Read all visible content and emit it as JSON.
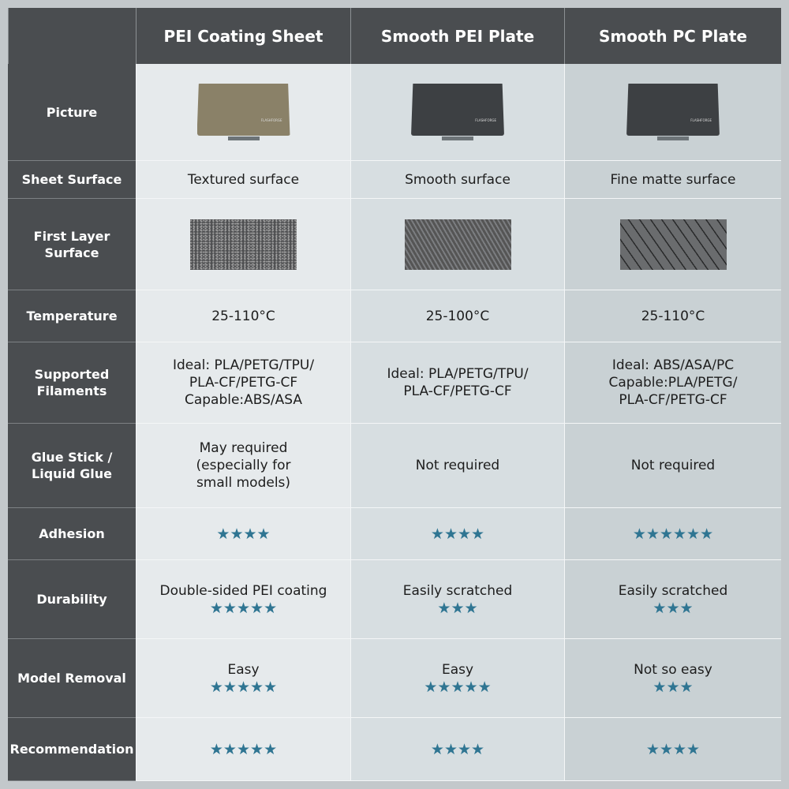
{
  "columns": [
    "PEI Coating Sheet",
    "Smooth PEI Plate",
    "Smooth PC Plate"
  ],
  "row_labels": [
    "Picture",
    "Sheet Surface",
    "First Layer Surface",
    "Temperature",
    "Supported Filaments",
    "Glue Stick / Liquid Glue",
    "Adhesion",
    "Durability",
    "Model Removal",
    "Recommendation"
  ],
  "plate_brand": "FLASHFORGE",
  "colors": {
    "header": "#4a4d50",
    "star": "#2f7592",
    "plate_pei": "#8a8168",
    "plate_smooth": "#3d4043"
  },
  "sheet_surface": [
    "Textured surface",
    "Smooth surface",
    "Fine matte surface"
  ],
  "temperature": [
    "25-110°C",
    "25-100°C",
    "25-110°C"
  ],
  "filaments": [
    [
      "Ideal: PLA/PETG/TPU/",
      "PLA-CF/PETG-CF",
      "Capable:ABS/ASA"
    ],
    [
      "Ideal: PLA/PETG/TPU/",
      "PLA-CF/PETG-CF"
    ],
    [
      "Ideal: ABS/ASA/PC",
      "Capable:PLA/PETG/",
      "PLA-CF/PETG-CF"
    ]
  ],
  "glue": [
    [
      "May required",
      "(especially for",
      "small models)"
    ],
    [
      "Not required"
    ],
    [
      "Not required"
    ]
  ],
  "adhesion_stars": [
    4,
    4,
    6
  ],
  "durability": [
    "Double-sided PEI coating",
    "Easily scratched",
    "Easily scratched"
  ],
  "durability_stars": [
    5,
    3,
    3
  ],
  "removal": [
    "Easy",
    "Easy",
    "Not so easy"
  ],
  "removal_stars": [
    5,
    5,
    3
  ],
  "recommendation_stars": [
    5,
    4,
    4
  ]
}
